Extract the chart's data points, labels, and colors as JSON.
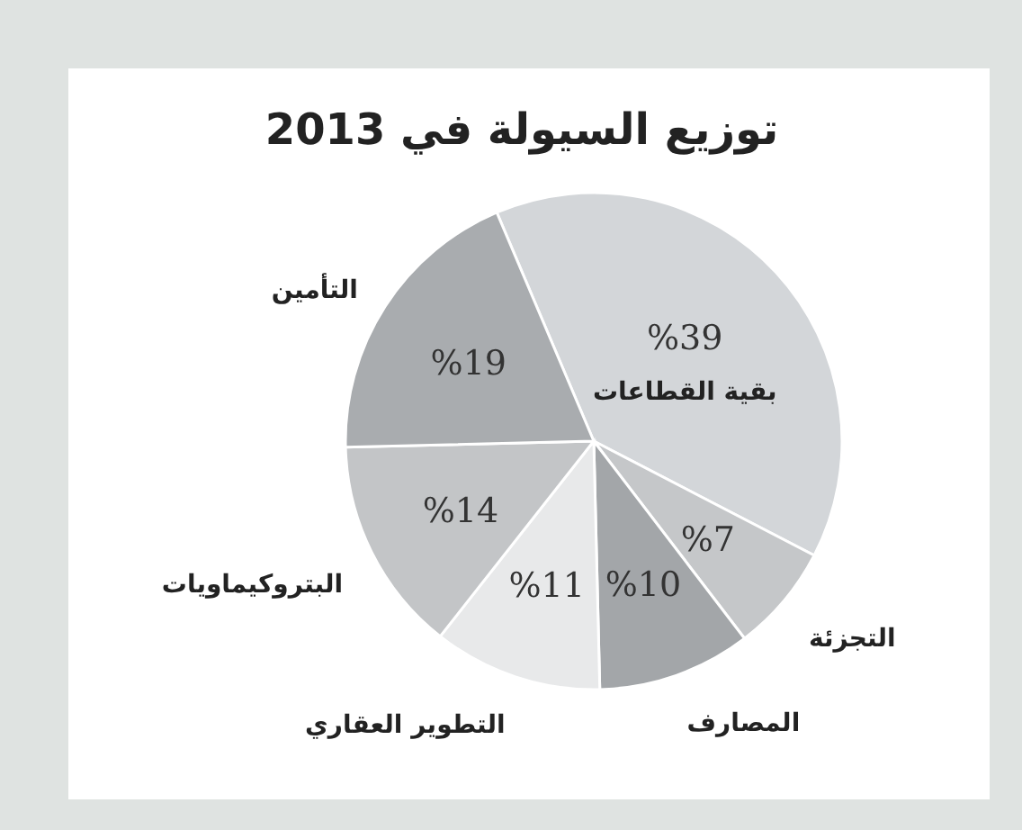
{
  "chart_data": {
    "type": "pie",
    "title": "توزيع السيولة في 2013",
    "categories": [
      "بقية القطاعات",
      "التجزئة",
      "المصارف",
      "التطوير العقاري",
      "البتروكيماويات",
      "التأمين"
    ],
    "values": [
      39,
      7,
      10,
      11,
      14,
      19
    ],
    "value_labels": [
      "%39",
      "%7",
      "%10",
      "%11",
      "%14",
      "%19"
    ],
    "colors": [
      "#d3d6d9",
      "#c5c7c9",
      "#a3a6a9",
      "#e8e9ea",
      "#c3c5c7",
      "#a9acaf"
    ]
  }
}
